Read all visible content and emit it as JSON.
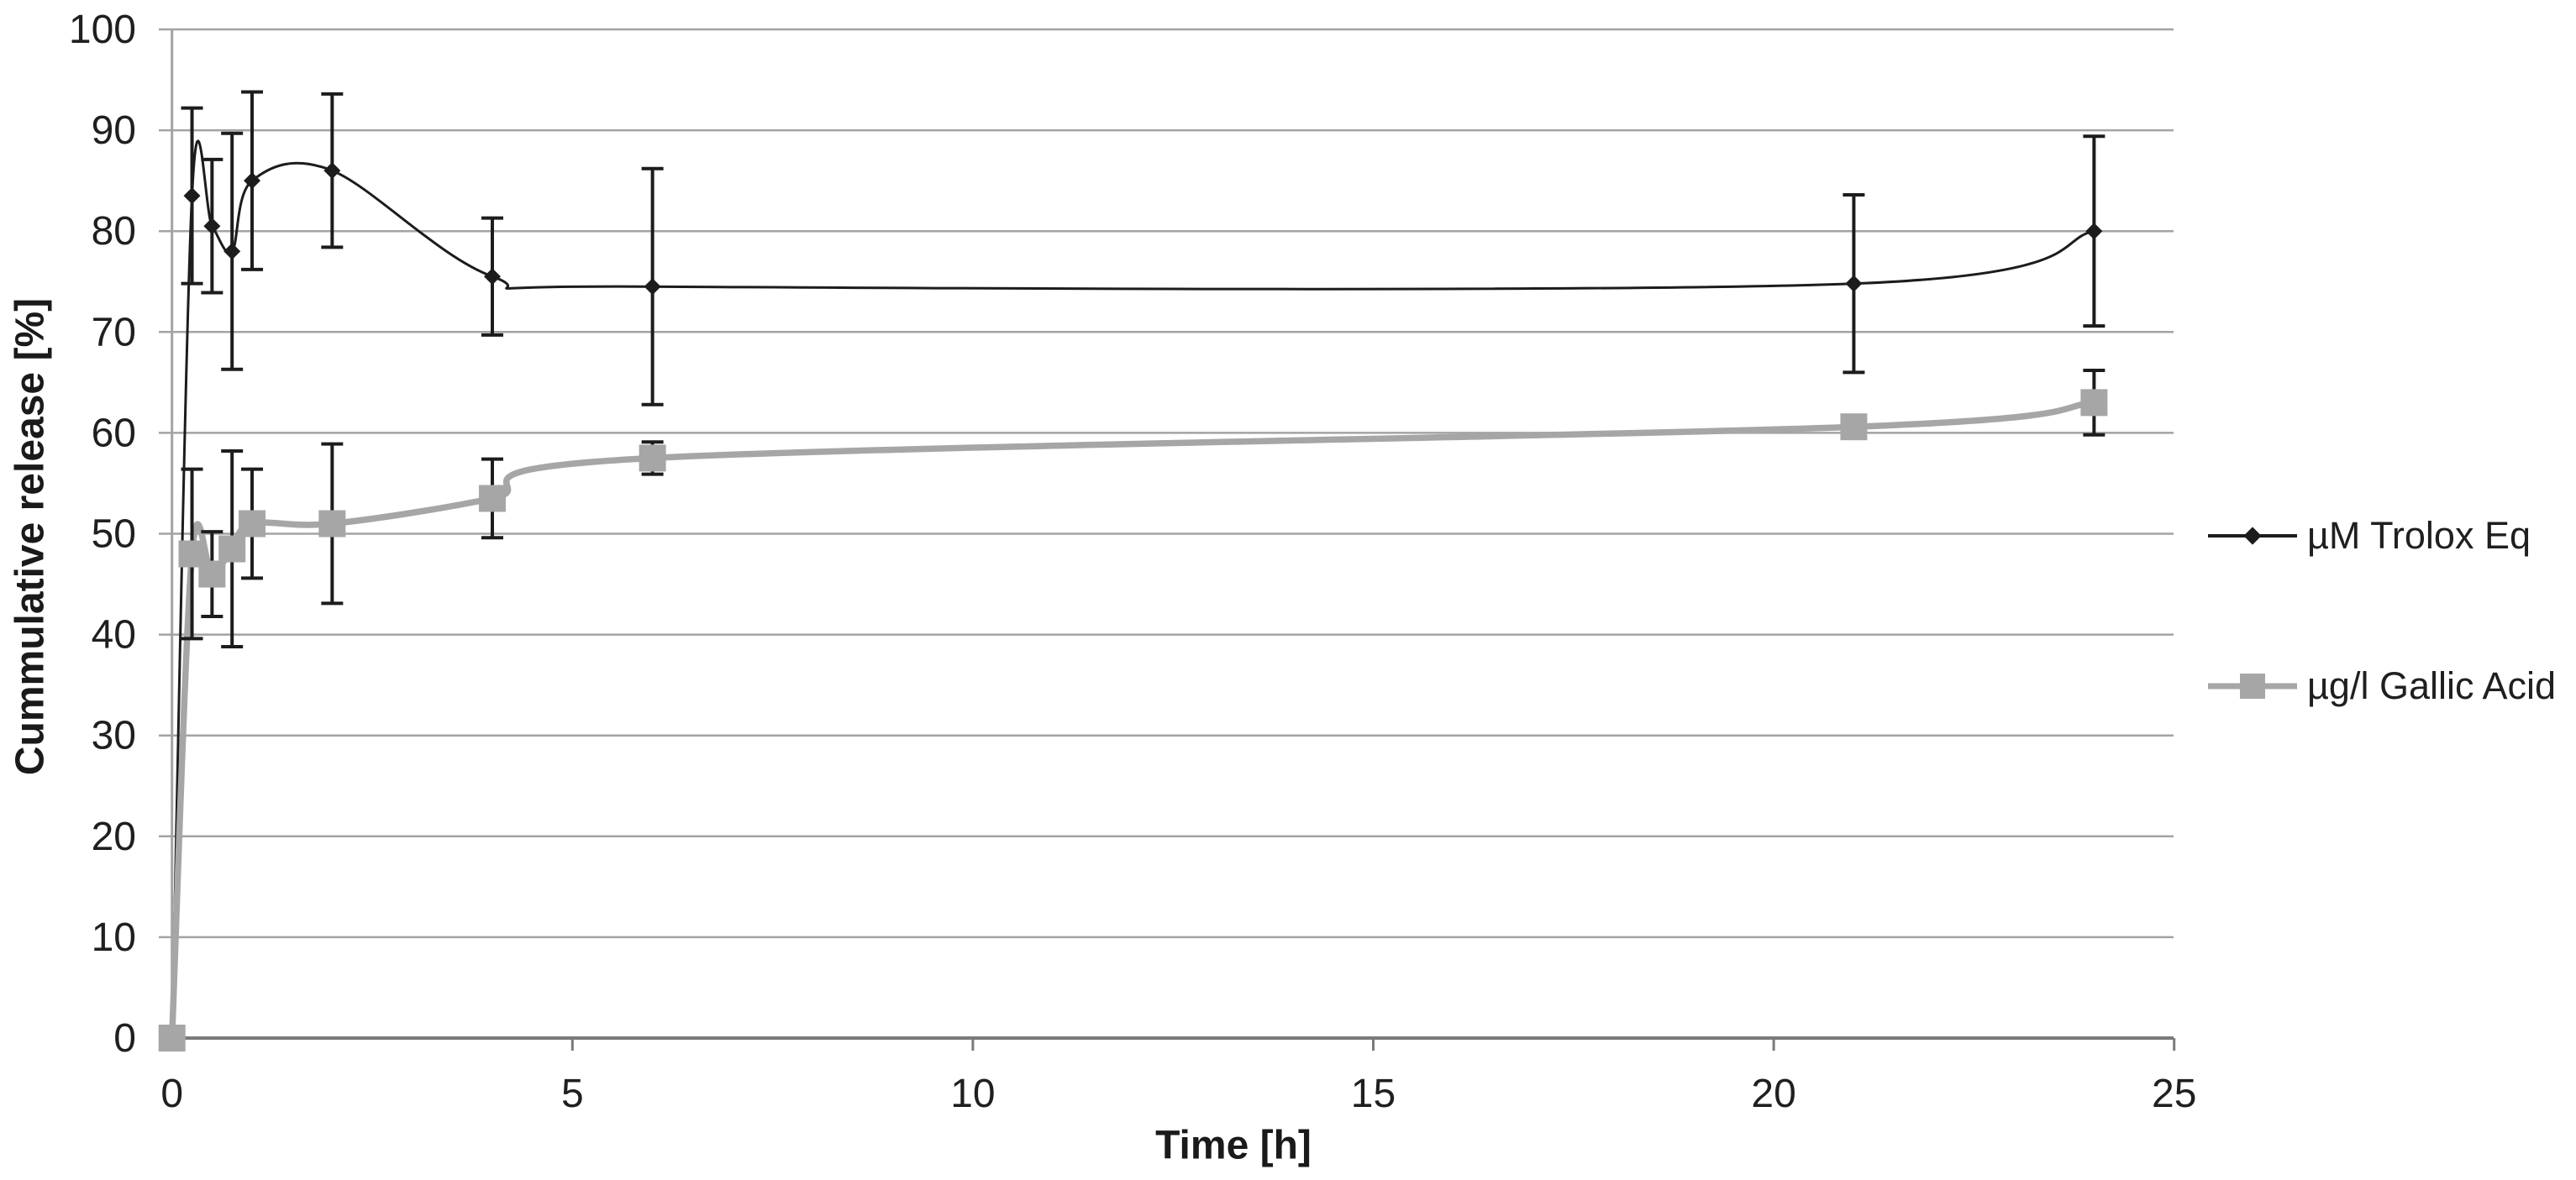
{
  "chart_data": {
    "type": "line",
    "title": "",
    "xlabel": "Time [h]",
    "ylabel": "Cummulative release [%]",
    "xlim": [
      0,
      25
    ],
    "ylim": [
      0,
      100
    ],
    "xticks": [
      0,
      5,
      10,
      15,
      20,
      25
    ],
    "yticks": [
      0,
      10,
      20,
      30,
      40,
      50,
      60,
      70,
      80,
      90,
      100
    ],
    "grid": "horizontal",
    "legend_position": "right",
    "x": [
      0,
      0.25,
      0.5,
      0.75,
      1,
      2,
      4,
      6,
      21,
      24
    ],
    "series": [
      {
        "name": "µM Trolox Eq",
        "color": "#1c1c1c",
        "marker": "diamond",
        "smooth": true,
        "values": [
          0,
          83.5,
          80.5,
          78,
          85,
          86,
          75.5,
          74.5,
          74.8,
          80
        ],
        "errors": [
          0,
          8.7,
          6.6,
          11.7,
          8.8,
          7.6,
          5.8,
          11.7,
          8.8,
          9.4
        ]
      },
      {
        "name": "µg/l Gallic Acid",
        "color": "#a6a6a6",
        "marker": "square",
        "smooth": true,
        "values": [
          0,
          48,
          46,
          48.5,
          51,
          51,
          53.5,
          57.5,
          60.6,
          63
        ],
        "errors": [
          0,
          8.4,
          4.2,
          9.7,
          5.4,
          7.9,
          3.9,
          1.6,
          0.8,
          3.2
        ]
      }
    ],
    "error_bar_color": "#1c1c1c",
    "gridline_color": "#a3a3a3",
    "axis_line_color": "#7a7a7a"
  }
}
